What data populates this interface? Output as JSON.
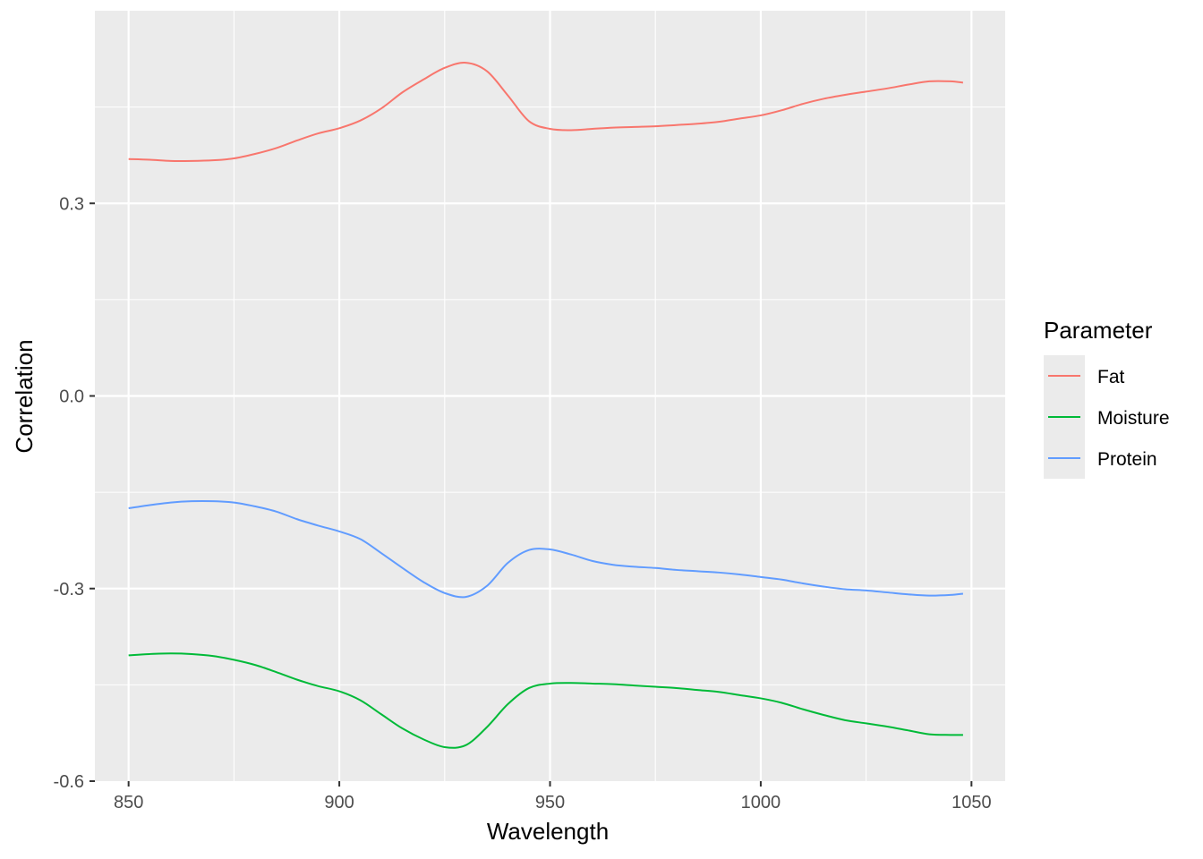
{
  "chart_data": {
    "type": "line",
    "title": "",
    "xlabel": "Wavelength",
    "ylabel": "Correlation",
    "xlim": [
      842,
      1058
    ],
    "ylim": [
      -0.6,
      0.6
    ],
    "x_ticks": [
      850,
      900,
      950,
      1000,
      1050
    ],
    "x_tick_labels": [
      "850",
      "900",
      "950",
      "1000",
      "1050"
    ],
    "y_ticks": [
      -0.6,
      -0.3,
      0.0,
      0.3
    ],
    "y_tick_labels": [
      "-0.6",
      "-0.3",
      "0.0",
      "0.3"
    ],
    "grid": true,
    "panel_background": "#ebebeb",
    "legend": {
      "title": "Parameter",
      "placement": "right"
    },
    "series": [
      {
        "name": "Fat",
        "color": "#f8766d",
        "x": [
          850,
          855,
          860,
          865,
          870,
          875,
          880,
          885,
          890,
          895,
          900,
          905,
          910,
          915,
          920,
          925,
          930,
          935,
          940,
          945,
          950,
          955,
          960,
          965,
          970,
          975,
          980,
          985,
          990,
          995,
          1000,
          1005,
          1010,
          1015,
          1020,
          1025,
          1030,
          1035,
          1040,
          1045,
          1048
        ],
        "y": [
          0.369,
          0.368,
          0.366,
          0.366,
          0.367,
          0.37,
          0.377,
          0.386,
          0.398,
          0.409,
          0.417,
          0.429,
          0.448,
          0.473,
          0.493,
          0.511,
          0.519,
          0.506,
          0.468,
          0.428,
          0.416,
          0.414,
          0.416,
          0.418,
          0.419,
          0.42,
          0.422,
          0.424,
          0.427,
          0.432,
          0.437,
          0.445,
          0.455,
          0.463,
          0.469,
          0.474,
          0.479,
          0.485,
          0.49,
          0.49,
          0.488
        ]
      },
      {
        "name": "Moisture",
        "color": "#00ba38",
        "x": [
          850,
          855,
          860,
          865,
          870,
          875,
          880,
          885,
          890,
          895,
          900,
          905,
          910,
          915,
          920,
          925,
          930,
          935,
          940,
          945,
          950,
          955,
          960,
          965,
          970,
          975,
          980,
          985,
          990,
          995,
          1000,
          1005,
          1010,
          1015,
          1020,
          1025,
          1030,
          1035,
          1040,
          1045,
          1048
        ],
        "y": [
          -0.404,
          -0.402,
          -0.401,
          -0.402,
          -0.405,
          -0.411,
          -0.419,
          -0.43,
          -0.442,
          -0.452,
          -0.46,
          -0.474,
          -0.496,
          -0.518,
          -0.535,
          -0.547,
          -0.544,
          -0.516,
          -0.48,
          -0.455,
          -0.448,
          -0.447,
          -0.448,
          -0.449,
          -0.451,
          -0.453,
          -0.455,
          -0.458,
          -0.461,
          -0.466,
          -0.471,
          -0.478,
          -0.488,
          -0.497,
          -0.505,
          -0.51,
          -0.515,
          -0.521,
          -0.527,
          -0.528,
          -0.528
        ]
      },
      {
        "name": "Protein",
        "color": "#619cff",
        "x": [
          850,
          855,
          860,
          865,
          870,
          875,
          880,
          885,
          890,
          895,
          900,
          905,
          910,
          915,
          920,
          925,
          930,
          935,
          940,
          945,
          950,
          955,
          960,
          965,
          970,
          975,
          980,
          985,
          990,
          995,
          1000,
          1005,
          1010,
          1015,
          1020,
          1025,
          1030,
          1035,
          1040,
          1045,
          1048
        ],
        "y": [
          -0.175,
          -0.17,
          -0.166,
          -0.164,
          -0.164,
          -0.166,
          -0.172,
          -0.18,
          -0.192,
          -0.202,
          -0.211,
          -0.223,
          -0.245,
          -0.268,
          -0.29,
          -0.307,
          -0.313,
          -0.296,
          -0.26,
          -0.24,
          -0.239,
          -0.247,
          -0.257,
          -0.263,
          -0.266,
          -0.268,
          -0.271,
          -0.273,
          -0.275,
          -0.278,
          -0.282,
          -0.286,
          -0.292,
          -0.297,
          -0.301,
          -0.303,
          -0.306,
          -0.309,
          -0.311,
          -0.31,
          -0.308
        ]
      }
    ]
  }
}
